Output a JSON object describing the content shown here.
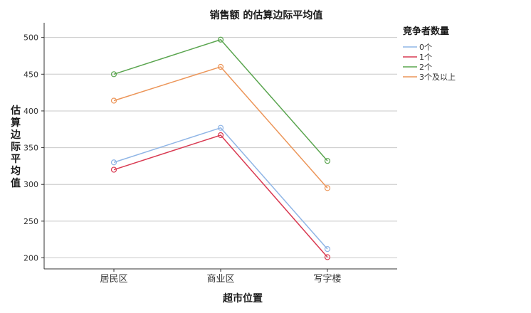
{
  "chart_data": {
    "type": "line",
    "title": "销售额 的估算边际平均值",
    "xlabel": "超市位置",
    "ylabel": "估算边际平均值",
    "categories": [
      "居民区",
      "商业区",
      "写字楼"
    ],
    "yticks": [
      200,
      250,
      300,
      350,
      400,
      450,
      500
    ],
    "ylim": [
      185,
      520
    ],
    "grid": true,
    "legend": {
      "title": "竞争者数量",
      "placement": "right-top"
    },
    "series": [
      {
        "name": "0个",
        "color": "#8fb5e6",
        "values": [
          330,
          377,
          212
        ]
      },
      {
        "name": "1个",
        "color": "#d93a52",
        "values": [
          320,
          367,
          201
        ]
      },
      {
        "name": "2个",
        "color": "#5aa54f",
        "values": [
          450,
          497,
          332
        ]
      },
      {
        "name": "3个及以上",
        "color": "#ec9558",
        "values": [
          414,
          460,
          295
        ]
      }
    ]
  }
}
